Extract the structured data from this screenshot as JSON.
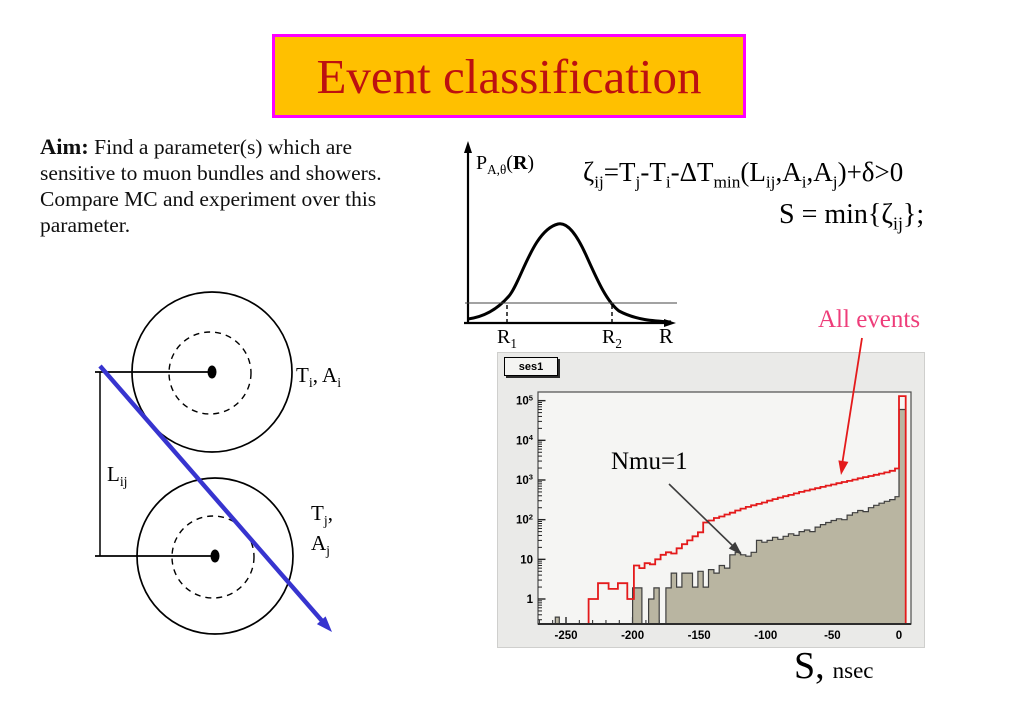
{
  "title": {
    "text": "Event classification",
    "bg": "#ffc000",
    "border": "#ff00ff",
    "color": "#bd1010"
  },
  "aim": {
    "label": "Aim:",
    "line1": "Find a parameter(s) which are",
    "line2": "sensitive to muon bundles and showers.",
    "line3": "Compare  MC and experiment over this",
    "line4": "parameter."
  },
  "zeta_formula": "ζ_{ij}=T_{j}-T_{i}-ΔT_{min}(L_{ij},A_{i},A_{j})+δ>0",
  "s_formula": "S = min{ζ_{ij}};",
  "pr_plot": {
    "ylabel": "P_{A,θ}(*R*)",
    "xlabel": "R",
    "r1": "R_{1}",
    "r2": "R_{2}"
  },
  "detector_diagram": {
    "top_label": "T_{i}, A_{i}",
    "bottom_label_1": "T_{j},",
    "bottom_label_2": "A_{j}",
    "distance_label": "L_{ij}",
    "track_color": "#3734cf"
  },
  "histogram": {
    "stats_label": "ses1",
    "annotation_all": "All events",
    "annotation_all_color": "#ee3d7a",
    "annotation_nmu": "Nmu=1",
    "xlabel_main": "S,",
    "xlabel_unit": "nsec",
    "panel_bg": "#eaeae8",
    "plot_bg": "#f5f5f3"
  },
  "chart_data": {
    "type": "bar",
    "subtype": "step-log-histogram",
    "title": "ses1",
    "xlabel": "S, nsec",
    "ylabel": "",
    "x_range": [
      -271,
      9
    ],
    "y_log_range": [
      0.235,
      160000
    ],
    "grid": false,
    "legend_position": "none",
    "x_ticks": [
      -250,
      -200,
      -150,
      -100,
      -50,
      0
    ],
    "y_ticks": [
      {
        "v": 1,
        "label": "1"
      },
      {
        "v": 10,
        "label": "10"
      },
      {
        "v": 100,
        "label": "10^{2}"
      },
      {
        "v": 1000,
        "label": "10^{3}"
      },
      {
        "v": 10000,
        "label": "10^{4}"
      },
      {
        "v": 100000,
        "label": "10^{5}"
      }
    ],
    "series": [
      {
        "name": "All events",
        "style": "line",
        "color": "#e41a1b",
        "steps": [
          [
            -271,
            0
          ],
          [
            -233,
            1
          ],
          [
            -226,
            2.5
          ],
          [
            -218,
            1.8
          ],
          [
            -211,
            2.5
          ],
          [
            -204,
            1
          ],
          [
            -199,
            7
          ],
          [
            -195,
            6
          ],
          [
            -191,
            8
          ],
          [
            -187,
            7.5
          ],
          [
            -183,
            10
          ],
          [
            -179,
            13
          ],
          [
            -175,
            15
          ],
          [
            -171,
            14
          ],
          [
            -167,
            19
          ],
          [
            -163,
            24
          ],
          [
            -159,
            30
          ],
          [
            -155,
            38
          ],
          [
            -151,
            48
          ],
          [
            -147,
            85
          ],
          [
            -143,
            95
          ],
          [
            -139,
            110
          ],
          [
            -135,
            120
          ],
          [
            -131,
            135
          ],
          [
            -127,
            150
          ],
          [
            -123,
            170
          ],
          [
            -119,
            190
          ],
          [
            -115,
            210
          ],
          [
            -111,
            230
          ],
          [
            -107,
            250
          ],
          [
            -103,
            270
          ],
          [
            -99,
            300
          ],
          [
            -95,
            330
          ],
          [
            -91,
            360
          ],
          [
            -87,
            390
          ],
          [
            -83,
            420
          ],
          [
            -79,
            460
          ],
          [
            -75,
            500
          ],
          [
            -71,
            540
          ],
          [
            -67,
            580
          ],
          [
            -63,
            620
          ],
          [
            -59,
            670
          ],
          [
            -55,
            720
          ],
          [
            -51,
            770
          ],
          [
            -47,
            830
          ],
          [
            -43,
            890
          ],
          [
            -39,
            950
          ],
          [
            -35,
            1020
          ],
          [
            -31,
            1100
          ],
          [
            -27,
            1180
          ],
          [
            -23,
            1260
          ],
          [
            -19,
            1350
          ],
          [
            -15,
            1450
          ],
          [
            -11,
            1550
          ],
          [
            -7,
            1700
          ],
          [
            -3,
            1950
          ],
          [
            0,
            130000
          ],
          [
            5,
            0
          ]
        ]
      },
      {
        "name": "Nmu=1",
        "style": "filled",
        "color": "#b9b5a1",
        "outline": "#3f3f3f",
        "steps": [
          [
            -271,
            0
          ],
          [
            -258,
            0.35
          ],
          [
            -255,
            0
          ],
          [
            -200,
            1.9
          ],
          [
            -193,
            0
          ],
          [
            -188,
            1
          ],
          [
            -184,
            1.9
          ],
          [
            -180,
            0
          ],
          [
            -175,
            1.9
          ],
          [
            -171,
            4.5
          ],
          [
            -167,
            2
          ],
          [
            -163,
            4.5
          ],
          [
            -159,
            4.5
          ],
          [
            -155,
            2
          ],
          [
            -151,
            5
          ],
          [
            -147,
            2
          ],
          [
            -143,
            5.5
          ],
          [
            -139,
            4.5
          ],
          [
            -135,
            7
          ],
          [
            -131,
            6
          ],
          [
            -127,
            13
          ],
          [
            -123,
            15
          ],
          [
            -119,
            13
          ],
          [
            -115,
            12
          ],
          [
            -111,
            15
          ],
          [
            -107,
            30
          ],
          [
            -103,
            27
          ],
          [
            -99,
            30
          ],
          [
            -95,
            36
          ],
          [
            -91,
            32
          ],
          [
            -87,
            38
          ],
          [
            -83,
            44
          ],
          [
            -79,
            40
          ],
          [
            -75,
            50
          ],
          [
            -71,
            55
          ],
          [
            -67,
            50
          ],
          [
            -63,
            65
          ],
          [
            -59,
            75
          ],
          [
            -55,
            85
          ],
          [
            -51,
            95
          ],
          [
            -47,
            105
          ],
          [
            -43,
            100
          ],
          [
            -39,
            130
          ],
          [
            -35,
            150
          ],
          [
            -31,
            170
          ],
          [
            -27,
            160
          ],
          [
            -23,
            200
          ],
          [
            -19,
            230
          ],
          [
            -15,
            260
          ],
          [
            -11,
            290
          ],
          [
            -7,
            320
          ],
          [
            -3,
            380
          ],
          [
            0,
            60000
          ],
          [
            5,
            0
          ]
        ]
      }
    ]
  }
}
